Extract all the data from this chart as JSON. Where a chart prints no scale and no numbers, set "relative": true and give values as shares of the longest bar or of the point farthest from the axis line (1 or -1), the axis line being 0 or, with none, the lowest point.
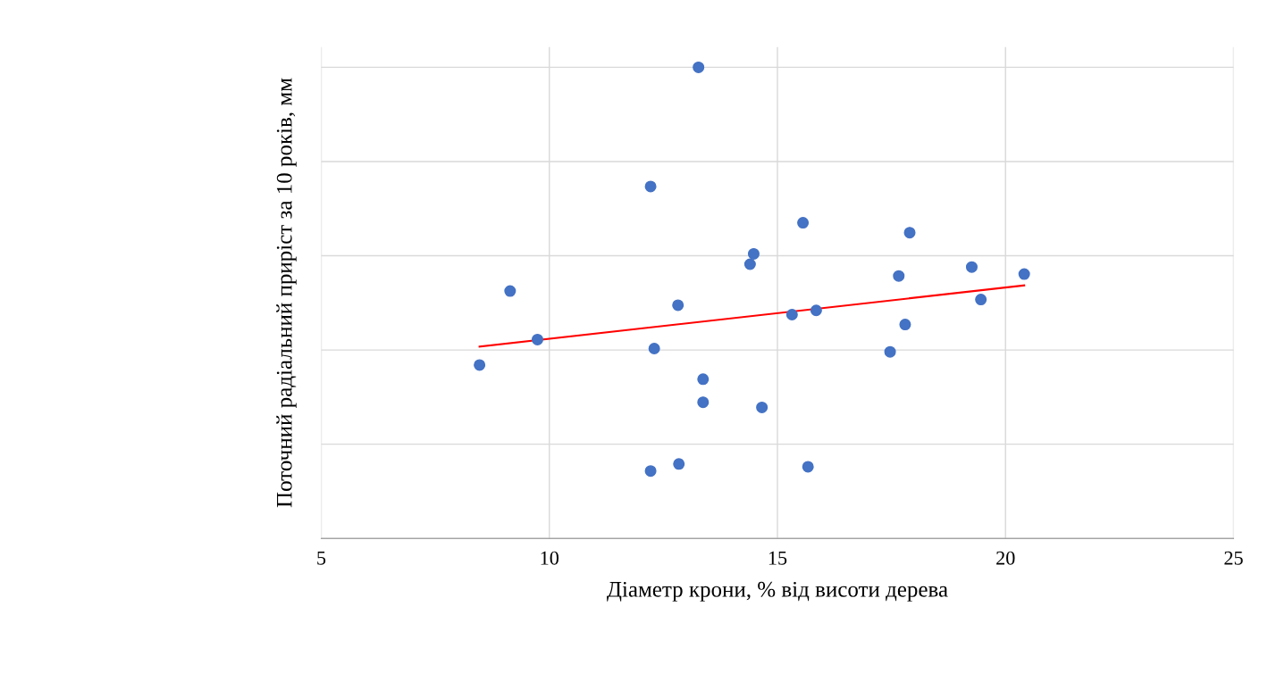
{
  "chart_data": {
    "type": "scatter",
    "relative": true,
    "xlabel": "Діаметр крони, % від висоти дерева",
    "ylabel": "Поточний радіальний приріст за 10 років, мм",
    "xlim": [
      5,
      25
    ],
    "xticks": [
      5,
      10,
      15,
      20,
      25
    ],
    "grid": true,
    "series": [
      {
        "marker": "circle",
        "color": "#4472c4",
        "x": [
          8.47,
          9.14,
          9.74,
          12.22,
          12.22,
          12.3,
          12.82,
          12.84,
          13.27,
          13.37,
          13.37,
          14.4,
          14.48,
          14.66,
          15.32,
          15.56,
          15.67,
          15.85,
          17.47,
          17.66,
          17.8,
          17.9,
          19.26,
          19.46,
          20.41
        ],
        "values": [
          0.368,
          0.525,
          0.422,
          0.747,
          0.143,
          0.403,
          0.495,
          0.158,
          1,
          0.338,
          0.289,
          0.582,
          0.604,
          0.278,
          0.475,
          0.67,
          0.152,
          0.484,
          0.396,
          0.557,
          0.454,
          0.649,
          0.576,
          0.507,
          0.561
        ]
      },
      {
        "type": "line",
        "marker": "none",
        "color": "#ff0000",
        "x": [
          8.47,
          20.41
        ],
        "values": [
          0.407,
          0.537
        ]
      }
    ]
  }
}
